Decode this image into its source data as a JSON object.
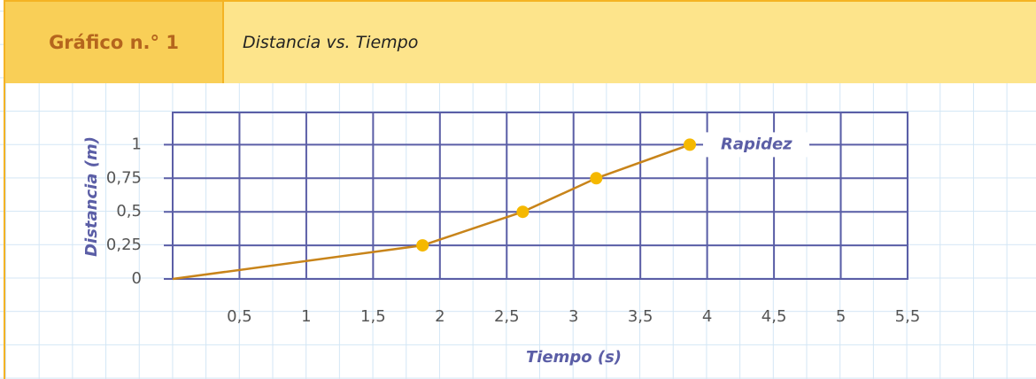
{
  "header": {
    "number": "Gráfico n.° 1"
  },
  "chart_data": {
    "type": "line",
    "title": "Distancia vs. Tiempo",
    "xlabel": "Tiempo (s)",
    "ylabel": "Distancia (m)",
    "x": [
      0,
      1.87,
      2.62,
      3.17,
      3.87
    ],
    "series": [
      {
        "name": "Rapidez",
        "color": "#c8841a",
        "marker_color": "#f5b800",
        "values": [
          0,
          0.25,
          0.5,
          0.75,
          1
        ]
      }
    ],
    "xlim": [
      0,
      5.5
    ],
    "ylim": [
      0,
      1.24
    ],
    "xticks": [
      {
        "value": 0.5,
        "label": "0,5"
      },
      1,
      {
        "value": 1.5,
        "label": "1,5"
      },
      2,
      {
        "value": 2.5,
        "label": "2,5"
      },
      3,
      {
        "value": 3.5,
        "label": "3,5"
      },
      4,
      {
        "value": 4.5,
        "label": "4,5"
      },
      5,
      {
        "value": 5.5,
        "label": "5,5"
      }
    ],
    "yticks": [
      0,
      {
        "value": 0.25,
        "label": "0,25"
      },
      {
        "value": 0.5,
        "label": "0,5"
      },
      {
        "value": 0.75,
        "label": "0,75"
      },
      1
    ],
    "grid": true,
    "grid_color": "#5b5ea6"
  }
}
